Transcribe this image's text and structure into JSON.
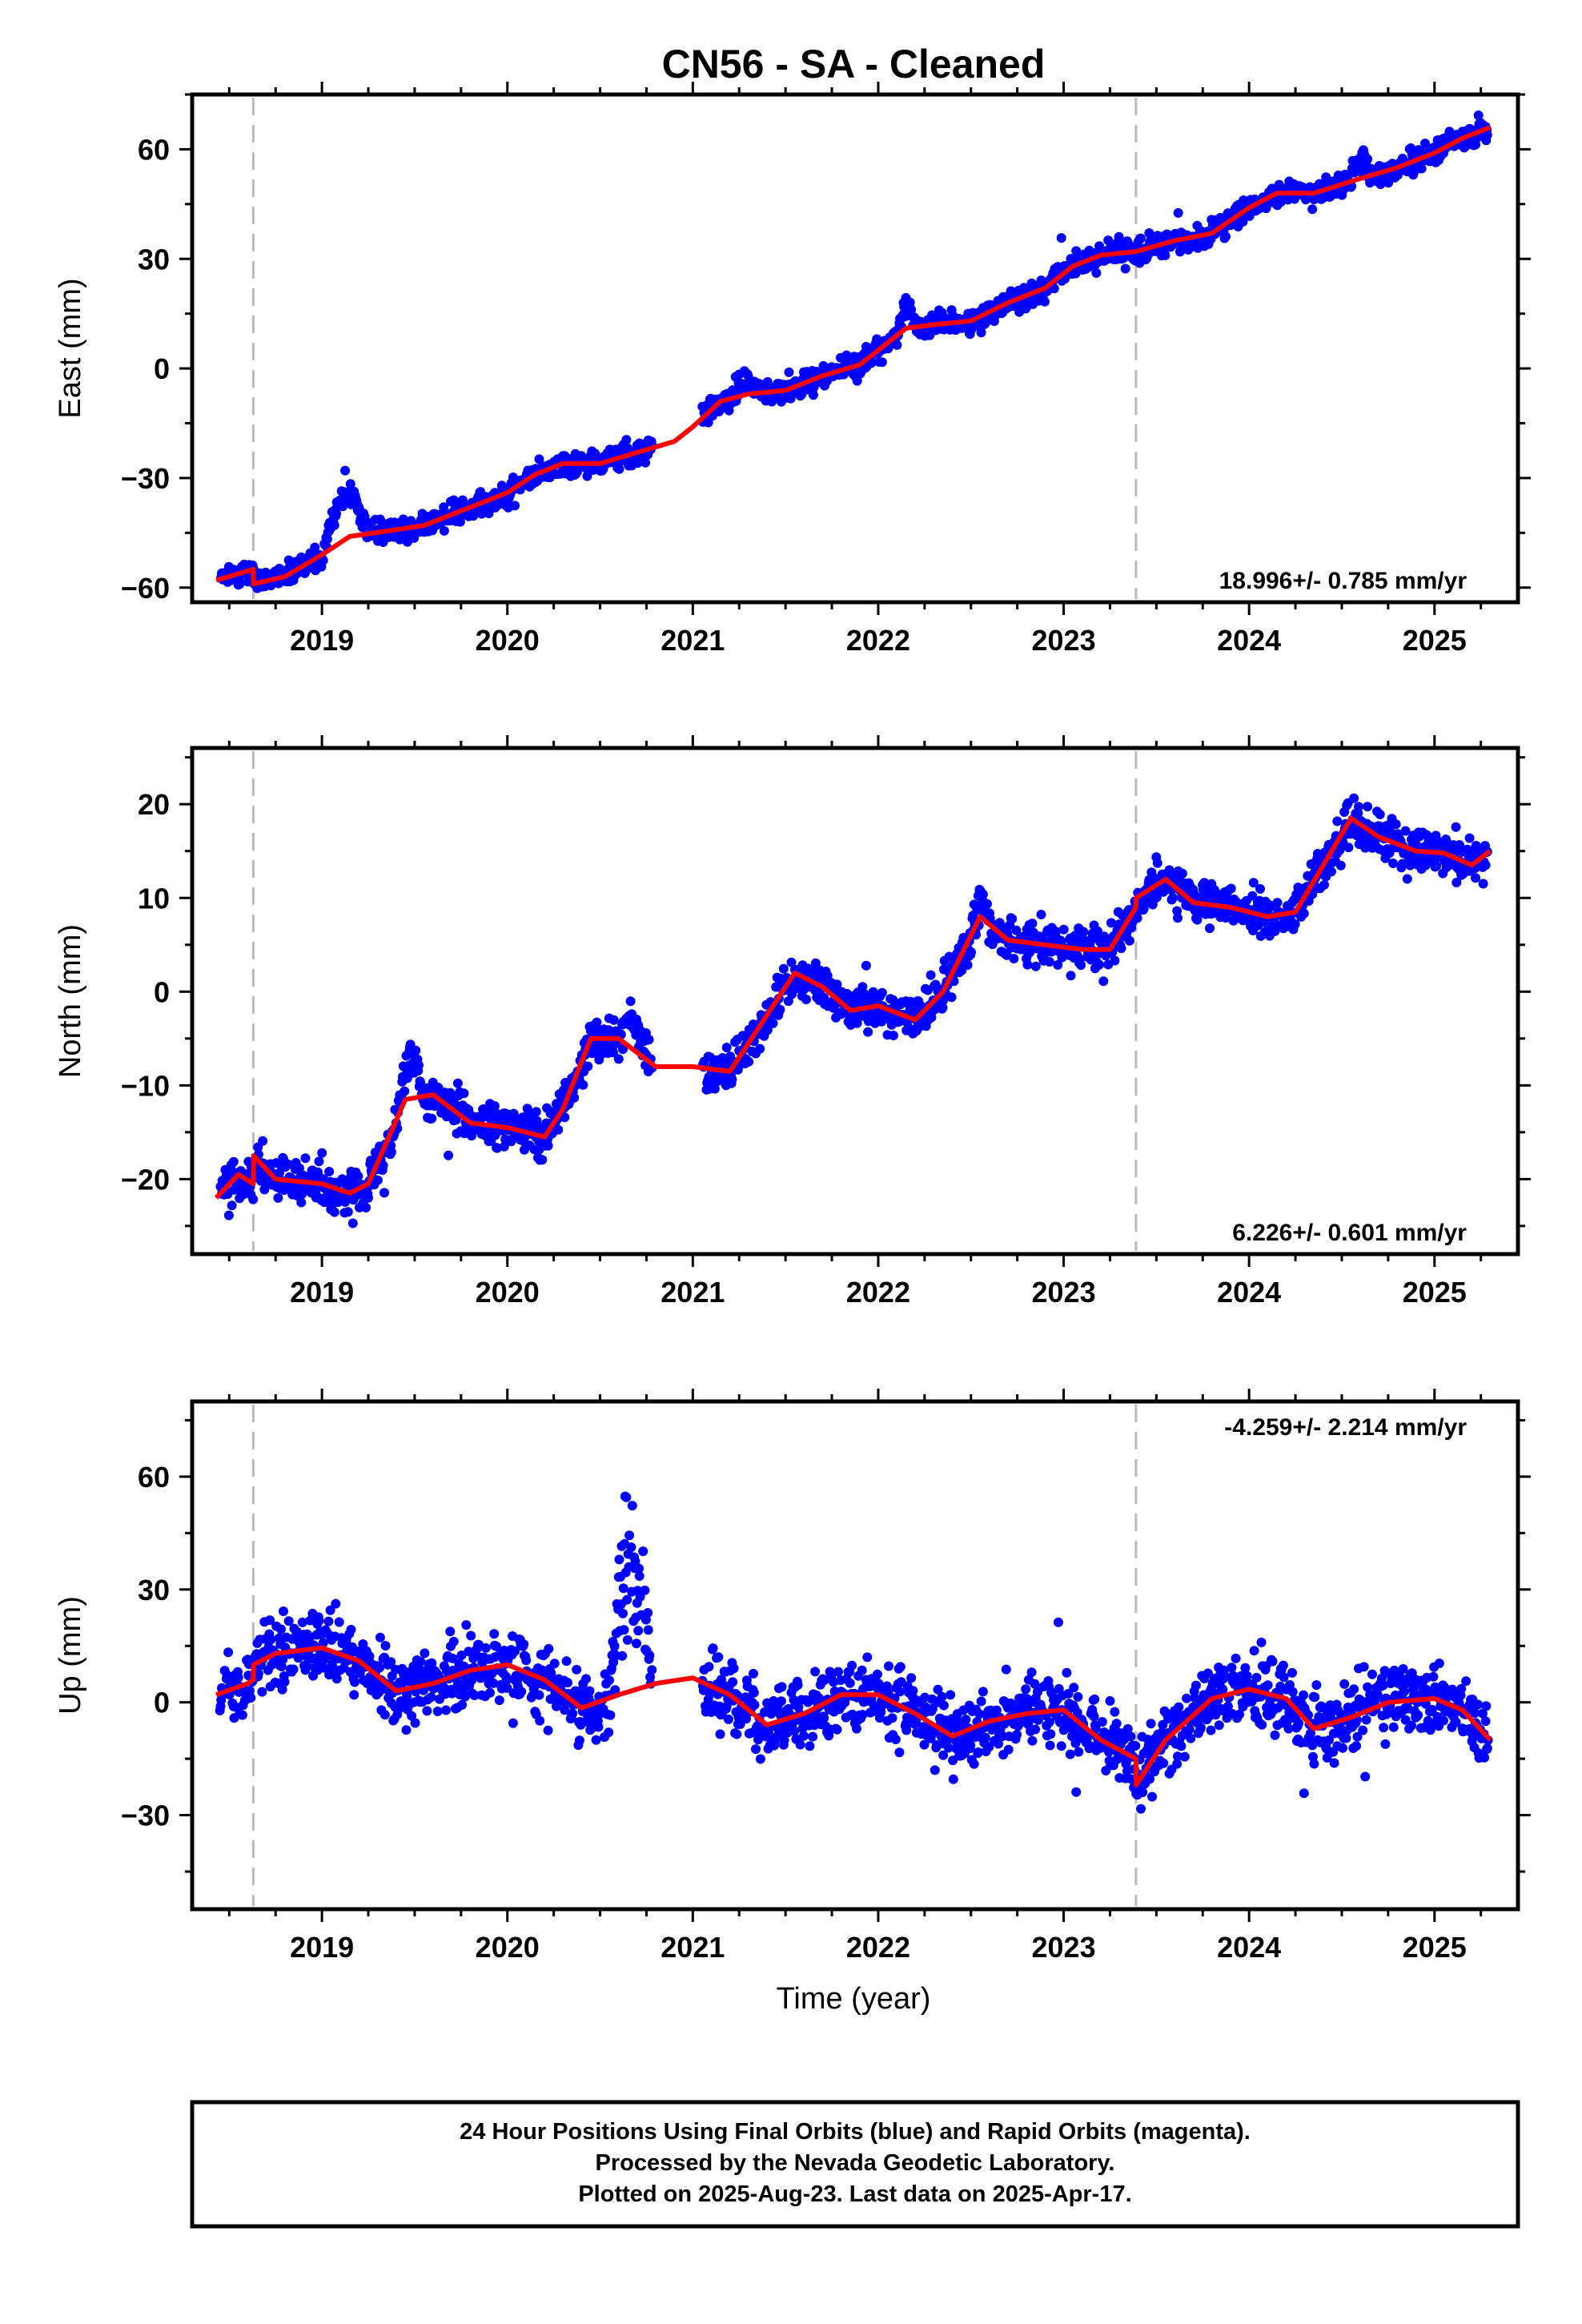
{
  "chart_data": {
    "type": "scatter",
    "title": "CN56  - SA - Cleaned",
    "xlabel": "Time (year)",
    "xlim": [
      2018.3,
      2025.45
    ],
    "x_ticks": [
      "2019",
      "2020",
      "2021",
      "2022",
      "2023",
      "2024",
      "2025"
    ],
    "x_tick_values": [
      2019,
      2020,
      2021,
      2022,
      2023,
      2024,
      2025
    ],
    "vertical_dashed_lines": [
      2018.63,
      2023.39
    ],
    "grid": false,
    "colors": {
      "points": "#0000ff",
      "fit": "#ff0000",
      "dashed": "#bbbbbb"
    },
    "panels": [
      {
        "name": "east",
        "ylabel": "East (mm)",
        "ylim": [
          -64,
          75
        ],
        "y_ticks": [
          -60,
          -30,
          0,
          30,
          60
        ],
        "y_tick_labels": [
          "−60",
          "−30",
          "0",
          "30",
          "60"
        ],
        "rate_label": "18.996+/- 0.785 mm/yr",
        "rate_position": "bottom-right",
        "noise": 2.3,
        "fit": [
          [
            2018.43,
            -58
          ],
          [
            2018.63,
            -55
          ],
          [
            2018.631,
            -59
          ],
          [
            2018.8,
            -57
          ],
          [
            2019.0,
            -51
          ],
          [
            2019.15,
            -46
          ],
          [
            2019.35,
            -44.5
          ],
          [
            2019.55,
            -43
          ],
          [
            2019.8,
            -38
          ],
          [
            2020.0,
            -34
          ],
          [
            2020.15,
            -29
          ],
          [
            2020.3,
            -26
          ],
          [
            2020.5,
            -26
          ],
          [
            2020.7,
            -23
          ],
          [
            2020.9,
            -20
          ],
          [
            2021.0,
            -16
          ],
          [
            2021.15,
            -9
          ],
          [
            2021.3,
            -7
          ],
          [
            2021.5,
            -6
          ],
          [
            2021.7,
            -2
          ],
          [
            2021.9,
            1
          ],
          [
            2022.0,
            5
          ],
          [
            2022.15,
            11
          ],
          [
            2022.3,
            12
          ],
          [
            2022.5,
            13
          ],
          [
            2022.7,
            18
          ],
          [
            2022.9,
            22
          ],
          [
            2023.05,
            28
          ],
          [
            2023.2,
            31
          ],
          [
            2023.39,
            32
          ],
          [
            2023.6,
            35
          ],
          [
            2023.8,
            37
          ],
          [
            2024.0,
            44
          ],
          [
            2024.15,
            48
          ],
          [
            2024.35,
            48
          ],
          [
            2024.6,
            52
          ],
          [
            2024.8,
            55
          ],
          [
            2025.0,
            59
          ],
          [
            2025.15,
            63
          ],
          [
            2025.3,
            66
          ]
        ],
        "bumps": [
          [
            2019.0,
            2019.25,
            12
          ],
          [
            2021.2,
            2021.35,
            3
          ],
          [
            2022.1,
            2022.2,
            6
          ],
          [
            2024.55,
            2024.65,
            4
          ]
        ]
      },
      {
        "name": "north",
        "ylabel": "North (mm)",
        "ylim": [
          -28,
          26
        ],
        "y_ticks": [
          -20,
          -10,
          0,
          10,
          20
        ],
        "y_tick_labels": [
          "−20",
          "−10",
          "0",
          "10",
          "20"
        ],
        "rate_label": "6.226+/- 0.601 mm/yr",
        "rate_position": "bottom-right",
        "noise": 1.6,
        "fit": [
          [
            2018.43,
            -22
          ],
          [
            2018.55,
            -19.5
          ],
          [
            2018.63,
            -20.5
          ],
          [
            2018.631,
            -17.5
          ],
          [
            2018.75,
            -20
          ],
          [
            2019.0,
            -20.5
          ],
          [
            2019.15,
            -21.5
          ],
          [
            2019.25,
            -20.5
          ],
          [
            2019.45,
            -11.5
          ],
          [
            2019.6,
            -11
          ],
          [
            2019.8,
            -14
          ],
          [
            2020.0,
            -14.5
          ],
          [
            2020.2,
            -15.5
          ],
          [
            2020.3,
            -12.5
          ],
          [
            2020.45,
            -5
          ],
          [
            2020.6,
            -5
          ],
          [
            2020.8,
            -8
          ],
          [
            2021.0,
            -8
          ],
          [
            2021.2,
            -8.5
          ],
          [
            2021.35,
            -4
          ],
          [
            2021.55,
            2
          ],
          [
            2021.7,
            0.5
          ],
          [
            2021.85,
            -2
          ],
          [
            2022.0,
            -1.5
          ],
          [
            2022.2,
            -3
          ],
          [
            2022.35,
            0
          ],
          [
            2022.55,
            8
          ],
          [
            2022.7,
            5.5
          ],
          [
            2022.9,
            5
          ],
          [
            2023.1,
            4.5
          ],
          [
            2023.25,
            4.5
          ],
          [
            2023.39,
            9
          ],
          [
            2023.391,
            10
          ],
          [
            2023.55,
            12
          ],
          [
            2023.7,
            9.5
          ],
          [
            2023.9,
            9
          ],
          [
            2024.1,
            8
          ],
          [
            2024.25,
            8.5
          ],
          [
            2024.55,
            18.5
          ],
          [
            2024.7,
            16.5
          ],
          [
            2024.9,
            15
          ],
          [
            2025.05,
            14.8
          ],
          [
            2025.2,
            13.5
          ],
          [
            2025.3,
            15
          ]
        ],
        "bumps": [
          [
            2019.4,
            2019.55,
            4
          ],
          [
            2020.6,
            2020.75,
            3
          ],
          [
            2022.5,
            2022.6,
            2
          ]
        ]
      },
      {
        "name": "up",
        "ylabel": "Up (mm)",
        "ylim": [
          -55,
          80
        ],
        "y_ticks": [
          -30,
          0,
          30,
          60
        ],
        "y_tick_labels": [
          "−30",
          "0",
          "30",
          "60"
        ],
        "rate_label": "-4.259+/- 2.214 mm/yr",
        "rate_position": "top-right",
        "noise": 6.5,
        "fit": [
          [
            2018.43,
            2
          ],
          [
            2018.6,
            5
          ],
          [
            2018.63,
            6
          ],
          [
            2018.631,
            10
          ],
          [
            2018.75,
            13
          ],
          [
            2019.0,
            14.5
          ],
          [
            2019.2,
            11
          ],
          [
            2019.4,
            3
          ],
          [
            2019.6,
            5
          ],
          [
            2019.8,
            8.5
          ],
          [
            2020.0,
            10
          ],
          [
            2020.2,
            6
          ],
          [
            2020.4,
            -1.5
          ],
          [
            2020.6,
            2
          ],
          [
            2020.8,
            5
          ],
          [
            2021.0,
            6.5
          ],
          [
            2021.2,
            2
          ],
          [
            2021.4,
            -6
          ],
          [
            2021.6,
            -3
          ],
          [
            2021.8,
            2
          ],
          [
            2022.0,
            2
          ],
          [
            2022.2,
            -3
          ],
          [
            2022.4,
            -9
          ],
          [
            2022.6,
            -5
          ],
          [
            2022.8,
            -3
          ],
          [
            2023.0,
            -2
          ],
          [
            2023.2,
            -10
          ],
          [
            2023.39,
            -15
          ],
          [
            2023.391,
            -22
          ],
          [
            2023.55,
            -10
          ],
          [
            2023.8,
            1
          ],
          [
            2024.0,
            3.5
          ],
          [
            2024.2,
            1
          ],
          [
            2024.35,
            -7
          ],
          [
            2024.55,
            -4
          ],
          [
            2024.75,
            0
          ],
          [
            2025.0,
            1
          ],
          [
            2025.15,
            -2
          ],
          [
            2025.3,
            -10
          ]
        ],
        "bumps": [
          [
            2020.55,
            2020.78,
            38
          ]
        ]
      }
    ],
    "gaps": [
      [
        2020.78,
        2021.05
      ]
    ],
    "footer_lines": [
      "24 Hour Positions Using Final Orbits (blue) and Rapid Orbits (magenta).",
      "Processed by the Nevada Geodetic Laboratory.",
      "Plotted on 2025-Aug-23. Last data on 2025-Apr-17."
    ]
  }
}
